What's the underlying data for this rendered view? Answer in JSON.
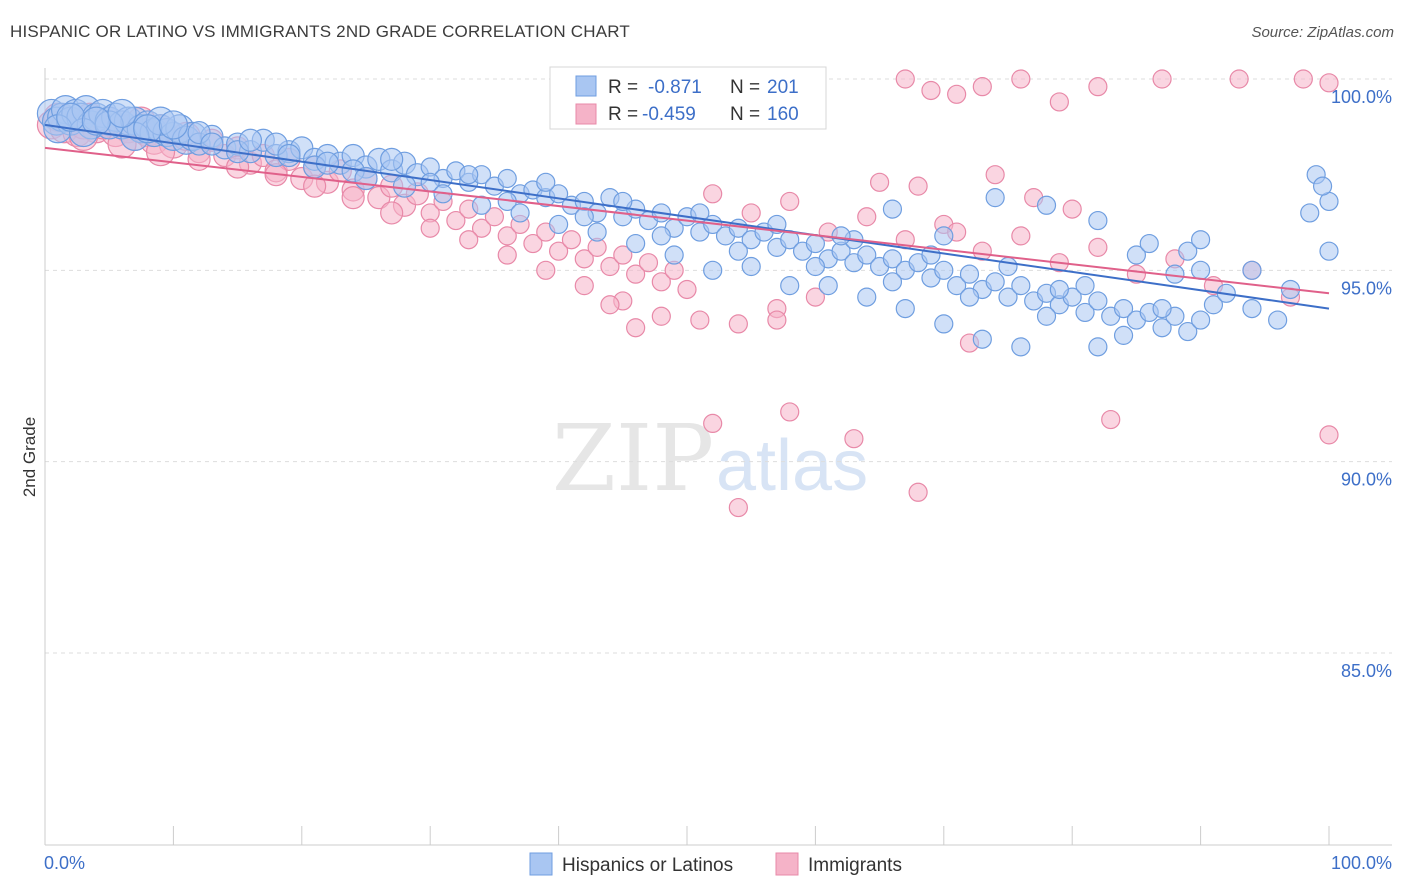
{
  "title": "HISPANIC OR LATINO VS IMMIGRANTS 2ND GRADE CORRELATION CHART",
  "source": "Source: ZipAtlas.com",
  "watermark": {
    "zip": "ZIP",
    "atlas": "atlas"
  },
  "colors": {
    "blue": "#3d6fc8",
    "blue_fill": "#a9c6f2",
    "pink": "#e0608a",
    "pink_fill": "#f5b3c8",
    "axis": "#cccccc",
    "grid": "#dddddd"
  },
  "chart_data": {
    "type": "scatter",
    "title": "HISPANIC OR LATINO VS IMMIGRANTS 2ND GRADE CORRELATION CHART",
    "ylabel": "2nd Grade",
    "xlabel": "",
    "xlim": [
      0,
      100
    ],
    "ylim": [
      80.5,
      100.5
    ],
    "x_tick_labels": [
      "0.0%",
      "100.0%"
    ],
    "y_ticks": [
      100,
      95,
      90,
      85
    ],
    "y_tick_labels": [
      "100.0%",
      "95.0%",
      "90.0%",
      "85.0%"
    ],
    "grid": "horizontal dashed",
    "legend_placement": "top-center",
    "stats": [
      {
        "r_label": "R =",
        "r": "-0.871",
        "n_label": "N =",
        "n": "201"
      },
      {
        "r_label": "R =",
        "r": "-0.459",
        "n_label": "N =",
        "n": "160"
      }
    ],
    "series": [
      {
        "name": "Hispanics or Latinos",
        "color": "#3d6fc8",
        "trend": {
          "x": [
            0,
            100
          ],
          "y": [
            98.8,
            94.0
          ]
        },
        "points": [
          [
            0.5,
            99.1
          ],
          [
            0.9,
            98.9
          ],
          [
            1.3,
            99.0
          ],
          [
            1.6,
            99.2
          ],
          [
            2,
            98.9
          ],
          [
            2.4,
            99.1
          ],
          [
            2.8,
            99.0
          ],
          [
            3.2,
            99.2
          ],
          [
            3.6,
            98.8
          ],
          [
            4,
            99.0
          ],
          [
            4.5,
            99.1
          ],
          [
            5,
            98.9
          ],
          [
            5.5,
            99.0
          ],
          [
            6,
            98.8
          ],
          [
            6.5,
            98.9
          ],
          [
            7,
            98.9
          ],
          [
            7.5,
            98.7
          ],
          [
            8,
            98.8
          ],
          [
            8.5,
            98.6
          ],
          [
            9,
            98.7
          ],
          [
            9.5,
            98.6
          ],
          [
            10,
            98.5
          ],
          [
            10.5,
            98.7
          ],
          [
            11,
            98.4
          ],
          [
            11.5,
            98.5
          ],
          [
            12,
            98.3
          ],
          [
            13,
            98.5
          ],
          [
            14,
            98.2
          ],
          [
            15,
            98.3
          ],
          [
            16,
            98.1
          ],
          [
            17,
            98.4
          ],
          [
            18,
            98.0
          ],
          [
            19,
            98.1
          ],
          [
            20,
            98.2
          ],
          [
            21,
            97.9
          ],
          [
            22,
            98.0
          ],
          [
            23,
            97.8
          ],
          [
            24,
            98.0
          ],
          [
            25,
            97.7
          ],
          [
            26,
            97.9
          ],
          [
            27,
            97.6
          ],
          [
            28,
            97.8
          ],
          [
            29,
            97.5
          ],
          [
            30,
            97.7
          ],
          [
            31,
            97.4
          ],
          [
            32,
            97.6
          ],
          [
            33,
            97.3
          ],
          [
            34,
            97.5
          ],
          [
            35,
            97.2
          ],
          [
            36,
            97.4
          ],
          [
            37,
            97.0
          ],
          [
            38,
            97.1
          ],
          [
            39,
            96.9
          ],
          [
            40,
            97.0
          ],
          [
            41,
            96.7
          ],
          [
            42,
            96.8
          ],
          [
            43,
            96.5
          ],
          [
            44,
            96.9
          ],
          [
            45,
            96.4
          ],
          [
            46,
            96.6
          ],
          [
            47,
            96.3
          ],
          [
            48,
            96.5
          ],
          [
            49,
            96.1
          ],
          [
            50,
            96.4
          ],
          [
            51,
            96.0
          ],
          [
            52,
            96.2
          ],
          [
            53,
            95.9
          ],
          [
            54,
            96.1
          ],
          [
            55,
            95.8
          ],
          [
            56,
            96.0
          ],
          [
            57,
            95.6
          ],
          [
            58,
            95.8
          ],
          [
            59,
            95.5
          ],
          [
            60,
            95.7
          ],
          [
            61,
            95.3
          ],
          [
            62,
            95.5
          ],
          [
            63,
            95.2
          ],
          [
            64,
            95.4
          ],
          [
            65,
            95.1
          ],
          [
            66,
            95.3
          ],
          [
            67,
            95.0
          ],
          [
            68,
            95.2
          ],
          [
            69,
            94.8
          ],
          [
            70,
            95.0
          ],
          [
            71,
            94.6
          ],
          [
            72,
            94.9
          ],
          [
            73,
            94.5
          ],
          [
            74,
            94.7
          ],
          [
            75,
            94.3
          ],
          [
            76,
            94.6
          ],
          [
            77,
            94.2
          ],
          [
            78,
            94.4
          ],
          [
            79,
            94.1
          ],
          [
            80,
            94.3
          ],
          [
            81,
            93.9
          ],
          [
            82,
            94.2
          ],
          [
            83,
            93.8
          ],
          [
            84,
            94.0
          ],
          [
            85,
            93.7
          ],
          [
            86,
            93.9
          ],
          [
            87,
            93.5
          ],
          [
            88,
            93.8
          ],
          [
            89,
            93.4
          ],
          [
            90,
            93.7
          ],
          [
            1,
            98.7
          ],
          [
            3,
            98.6
          ],
          [
            5,
            98.8
          ],
          [
            7,
            98.5
          ],
          [
            9,
            98.9
          ],
          [
            12,
            98.6
          ],
          [
            15,
            98.1
          ],
          [
            18,
            98.3
          ],
          [
            21,
            97.7
          ],
          [
            24,
            97.6
          ],
          [
            27,
            97.9
          ],
          [
            30,
            97.3
          ],
          [
            33,
            97.5
          ],
          [
            36,
            96.8
          ],
          [
            39,
            97.3
          ],
          [
            42,
            96.4
          ],
          [
            45,
            96.8
          ],
          [
            48,
            95.9
          ],
          [
            51,
            96.5
          ],
          [
            54,
            95.5
          ],
          [
            57,
            96.2
          ],
          [
            60,
            95.1
          ],
          [
            63,
            95.8
          ],
          [
            66,
            94.7
          ],
          [
            69,
            95.4
          ],
          [
            72,
            94.3
          ],
          [
            75,
            95.1
          ],
          [
            78,
            93.8
          ],
          [
            81,
            94.6
          ],
          [
            84,
            93.3
          ],
          [
            87,
            94.0
          ],
          [
            90,
            95.0
          ],
          [
            2,
            99.0
          ],
          [
            4,
            98.9
          ],
          [
            6,
            99.1
          ],
          [
            8,
            98.7
          ],
          [
            10,
            98.8
          ],
          [
            13,
            98.3
          ],
          [
            16,
            98.4
          ],
          [
            19,
            98.0
          ],
          [
            22,
            97.8
          ],
          [
            25,
            97.4
          ],
          [
            28,
            97.2
          ],
          [
            31,
            97.0
          ],
          [
            34,
            96.7
          ],
          [
            37,
            96.5
          ],
          [
            40,
            96.2
          ],
          [
            43,
            96.0
          ],
          [
            46,
            95.7
          ],
          [
            49,
            95.4
          ],
          [
            52,
            95.0
          ],
          [
            55,
            95.1
          ],
          [
            58,
            94.6
          ],
          [
            61,
            94.6
          ],
          [
            64,
            94.3
          ],
          [
            67,
            94.0
          ],
          [
            70,
            93.6
          ],
          [
            73,
            93.2
          ],
          [
            76,
            93.0
          ],
          [
            79,
            94.5
          ],
          [
            82,
            93.0
          ],
          [
            85,
            95.4
          ],
          [
            88,
            94.9
          ],
          [
            91,
            94.1
          ],
          [
            94,
            94.0
          ],
          [
            97,
            94.5
          ],
          [
            100,
            95.5
          ],
          [
            99,
            97.5
          ],
          [
            100,
            96.8
          ],
          [
            98.5,
            96.5
          ],
          [
            99.5,
            97.2
          ],
          [
            62,
            95.9
          ],
          [
            66,
            96.6
          ],
          [
            70,
            95.9
          ],
          [
            74,
            96.9
          ],
          [
            78,
            96.7
          ],
          [
            82,
            96.3
          ],
          [
            86,
            95.7
          ],
          [
            89,
            95.5
          ],
          [
            92,
            94.4
          ],
          [
            94,
            95.0
          ],
          [
            96,
            93.7
          ],
          [
            90,
            95.8
          ]
        ]
      },
      {
        "name": "Immigrants",
        "color": "#e0608a",
        "trend": {
          "x": [
            0,
            100
          ],
          "y": [
            98.2,
            94.4
          ]
        },
        "points": [
          [
            0.5,
            98.8
          ],
          [
            1,
            99.0
          ],
          [
            1.5,
            98.7
          ],
          [
            2,
            98.9
          ],
          [
            2.5,
            98.6
          ],
          [
            3,
            98.8
          ],
          [
            3.5,
            99.0
          ],
          [
            4,
            98.7
          ],
          [
            4.5,
            98.8
          ],
          [
            5,
            98.9
          ],
          [
            5.5,
            98.6
          ],
          [
            6,
            98.8
          ],
          [
            6.5,
            98.7
          ],
          [
            7,
            98.5
          ],
          [
            7.5,
            98.9
          ],
          [
            8,
            98.6
          ],
          [
            8.5,
            98.4
          ],
          [
            9,
            98.7
          ],
          [
            10,
            98.3
          ],
          [
            11,
            98.5
          ],
          [
            12,
            98.1
          ],
          [
            13,
            98.4
          ],
          [
            14,
            98.0
          ],
          [
            15,
            98.2
          ],
          [
            16,
            97.8
          ],
          [
            17,
            98.0
          ],
          [
            18,
            97.6
          ],
          [
            19,
            97.9
          ],
          [
            20,
            97.4
          ],
          [
            21,
            97.7
          ],
          [
            22,
            97.3
          ],
          [
            23,
            97.6
          ],
          [
            24,
            97.1
          ],
          [
            25,
            97.4
          ],
          [
            26,
            96.9
          ],
          [
            27,
            97.2
          ],
          [
            28,
            96.7
          ],
          [
            29,
            97.0
          ],
          [
            30,
            96.5
          ],
          [
            31,
            96.8
          ],
          [
            32,
            96.3
          ],
          [
            33,
            96.6
          ],
          [
            34,
            96.1
          ],
          [
            35,
            96.4
          ],
          [
            36,
            95.9
          ],
          [
            37,
            96.2
          ],
          [
            38,
            95.7
          ],
          [
            39,
            96.0
          ],
          [
            40,
            95.5
          ],
          [
            41,
            95.8
          ],
          [
            42,
            95.3
          ],
          [
            43,
            95.6
          ],
          [
            44,
            95.1
          ],
          [
            45,
            95.4
          ],
          [
            46,
            94.9
          ],
          [
            47,
            95.2
          ],
          [
            48,
            94.7
          ],
          [
            49,
            95.0
          ],
          [
            50,
            94.5
          ],
          [
            3,
            98.5
          ],
          [
            6,
            98.3
          ],
          [
            9,
            98.1
          ],
          [
            12,
            97.9
          ],
          [
            15,
            97.7
          ],
          [
            18,
            97.5
          ],
          [
            21,
            97.2
          ],
          [
            24,
            96.9
          ],
          [
            27,
            96.5
          ],
          [
            30,
            96.1
          ],
          [
            33,
            95.8
          ],
          [
            36,
            95.4
          ],
          [
            39,
            95.0
          ],
          [
            42,
            94.6
          ],
          [
            45,
            94.2
          ],
          [
            48,
            93.8
          ],
          [
            51,
            93.7
          ],
          [
            54,
            93.6
          ],
          [
            57,
            94.0
          ],
          [
            60,
            94.3
          ],
          [
            52,
            97.0
          ],
          [
            55,
            96.5
          ],
          [
            58,
            96.8
          ],
          [
            61,
            96.0
          ],
          [
            64,
            96.4
          ],
          [
            67,
            95.8
          ],
          [
            70,
            96.2
          ],
          [
            73,
            95.5
          ],
          [
            76,
            95.9
          ],
          [
            79,
            95.2
          ],
          [
            82,
            95.6
          ],
          [
            85,
            94.9
          ],
          [
            88,
            95.3
          ],
          [
            91,
            94.6
          ],
          [
            94,
            95.0
          ],
          [
            97,
            94.3
          ],
          [
            65,
            97.3
          ],
          [
            68,
            97.2
          ],
          [
            71,
            96.0
          ],
          [
            74,
            97.5
          ],
          [
            77,
            96.9
          ],
          [
            80,
            96.6
          ],
          [
            87,
            100.0
          ],
          [
            93,
            100.0
          ],
          [
            98,
            100.0
          ],
          [
            100,
            99.9
          ],
          [
            82,
            99.8
          ],
          [
            79,
            99.4
          ],
          [
            76,
            100.0
          ],
          [
            73,
            99.8
          ],
          [
            71,
            99.6
          ],
          [
            69,
            99.7
          ],
          [
            67,
            100.0
          ],
          [
            52,
            91.0
          ],
          [
            54,
            88.8
          ],
          [
            58,
            91.3
          ],
          [
            63,
            90.6
          ],
          [
            68,
            89.2
          ],
          [
            83,
            91.1
          ],
          [
            100,
            90.7
          ],
          [
            72,
            93.1
          ],
          [
            57,
            93.7
          ],
          [
            46,
            93.5
          ],
          [
            44,
            94.1
          ]
        ]
      }
    ]
  }
}
